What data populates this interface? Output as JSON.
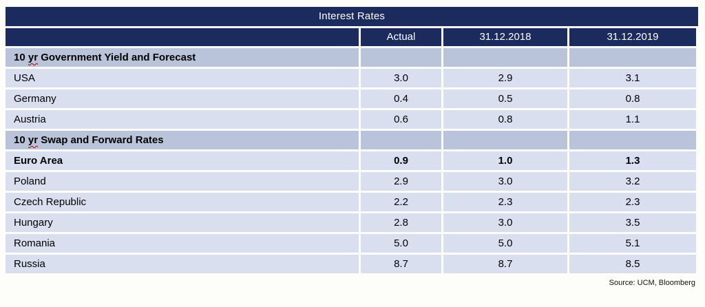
{
  "colors": {
    "navy": "#1b2b5e",
    "section_row": "#b9c4da",
    "data_row": "#d9dfee",
    "header_text": "#ffffff",
    "squiggle": "#b40000",
    "page_bg": "#fdfdfa"
  },
  "header": {
    "title": "Interest Rates",
    "columns": [
      "Actual",
      "31.12.2018",
      "31.12.2019"
    ]
  },
  "sections": [
    {
      "label": {
        "pre": "10 ",
        "typo": "yr",
        "post": " Government Yield and Forecast"
      },
      "rows": [
        {
          "label": "USA",
          "values": [
            "3.0",
            "2.9",
            "3.1"
          ]
        },
        {
          "label": "Germany",
          "values": [
            "0.4",
            "0.5",
            "0.8"
          ]
        },
        {
          "label": "Austria",
          "values": [
            "0.6",
            "0.8",
            "1.1"
          ]
        }
      ]
    },
    {
      "label": {
        "pre": "10 ",
        "typo": "yr",
        "post": " Swap and Forward Rates"
      },
      "rows": [
        {
          "label": "Euro Area",
          "values": [
            "0.9",
            "1.0",
            "1.3"
          ],
          "bold": true
        },
        {
          "label": "Poland",
          "values": [
            "2.9",
            "3.0",
            "3.2"
          ]
        },
        {
          "label": "Czech Republic",
          "values": [
            "2.2",
            "2.3",
            "2.3"
          ]
        },
        {
          "label": "Hungary",
          "values": [
            "2.8",
            "3.0",
            "3.5"
          ]
        },
        {
          "label": "Romania",
          "values": [
            "5.0",
            "5.0",
            "5.1"
          ]
        },
        {
          "label": "Russia",
          "values": [
            "8.7",
            "8.7",
            "8.5"
          ]
        }
      ]
    }
  ],
  "footer": {
    "source": "Source: UCM, Bloomberg"
  }
}
